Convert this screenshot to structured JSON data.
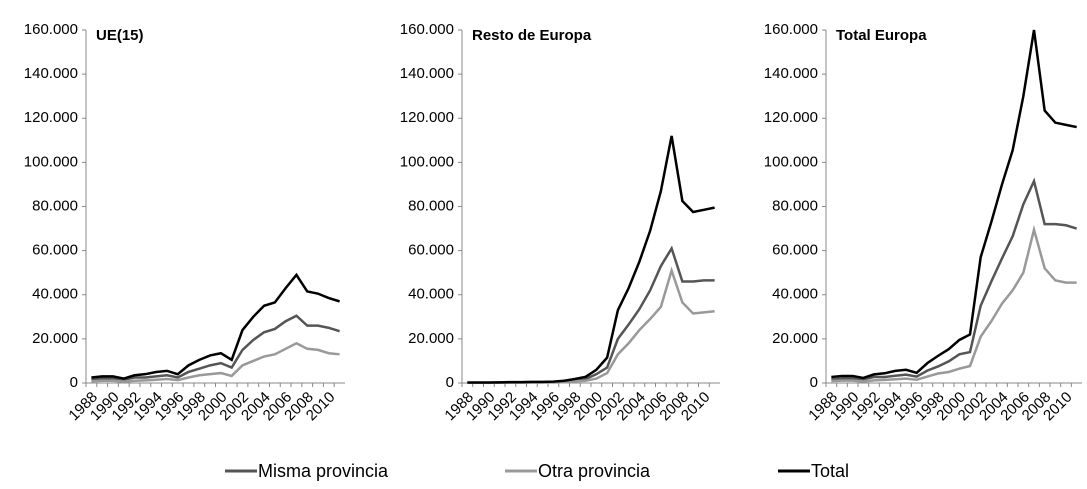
{
  "chart_data": [
    {
      "type": "line",
      "title": "UE(15)",
      "categories": [
        "1988",
        null,
        "1990",
        null,
        "1992",
        null,
        "1994",
        null,
        "1996",
        null,
        "1998",
        null,
        "2000",
        null,
        "2002",
        null,
        "2004",
        null,
        "2006",
        null,
        "2008",
        null,
        "2010",
        null
      ],
      "series": [
        {
          "name": "Misma provincia",
          "color": "#555555",
          "values": [
            1500,
            2000,
            2000,
            1500,
            2500,
            2500,
            3000,
            3500,
            2500,
            5000,
            6500,
            8000,
            9000,
            7000,
            15000,
            19500,
            23000,
            24500,
            28000,
            30500,
            26000,
            26000,
            25000,
            23500
          ]
        },
        {
          "name": "Otra provincia",
          "color": "#999999",
          "values": [
            800,
            1000,
            1000,
            600,
            1000,
            1200,
            1500,
            1800,
            1300,
            2500,
            3500,
            4000,
            4500,
            3200,
            8000,
            10000,
            12000,
            13000,
            15500,
            18000,
            15500,
            15000,
            13500,
            13000
          ]
        },
        {
          "name": "Total",
          "color": "#000000",
          "values": [
            2500,
            3000,
            3000,
            2000,
            3500,
            4000,
            5000,
            5500,
            4000,
            8000,
            10500,
            12500,
            13500,
            10500,
            24000,
            30000,
            35000,
            36500,
            43000,
            49000,
            41500,
            40500,
            38500,
            37000
          ]
        }
      ],
      "ylim": [
        0,
        160000
      ],
      "yticks": [
        0,
        {
          "value": 20000,
          "label": "20.000"
        },
        {
          "value": 40000,
          "label": "40.000"
        },
        {
          "value": 60000,
          "label": "60.000"
        },
        {
          "value": 80000,
          "label": "80.000"
        },
        {
          "value": 100000,
          "label": "100.000"
        },
        {
          "value": 120000,
          "label": "120.000"
        },
        {
          "value": 140000,
          "label": "140.000"
        },
        {
          "value": 160000,
          "label": "160.000"
        }
      ]
    },
    {
      "type": "line",
      "title": "Resto de Europa",
      "categories": [
        "1988",
        null,
        "1990",
        null,
        "1992",
        null,
        "1994",
        null,
        "1996",
        null,
        "1998",
        null,
        "2000",
        null,
        "2002",
        null,
        "2004",
        null,
        "2006",
        null,
        "2008",
        null,
        "2010",
        null
      ],
      "series": [
        {
          "name": "Misma provincia",
          "color": "#555555",
          "values": [
            100,
            100,
            100,
            200,
            200,
            200,
            300,
            300,
            400,
            600,
            1000,
            1800,
            4000,
            7000,
            20000,
            26500,
            33500,
            42000,
            53000,
            61000,
            46000,
            46000,
            46500,
            46500
          ]
        },
        {
          "name": "Otra provincia",
          "color": "#999999",
          "values": [
            100,
            100,
            100,
            100,
            200,
            200,
            200,
            200,
            200,
            400,
            800,
            1000,
            2000,
            4500,
            13000,
            18000,
            24000,
            29000,
            34500,
            51000,
            36500,
            31500,
            32000,
            32500
          ]
        },
        {
          "name": "Total",
          "color": "#000000",
          "values": [
            200,
            200,
            200,
            300,
            400,
            400,
            500,
            500,
            600,
            1000,
            1800,
            2800,
            6000,
            11500,
            33000,
            43000,
            55000,
            69000,
            87000,
            112000,
            82500,
            77500,
            78500,
            79500
          ]
        }
      ],
      "ylim": [
        0,
        160000
      ],
      "yticks": [
        0,
        {
          "value": 20000,
          "label": "20.000"
        },
        {
          "value": 40000,
          "label": "40.000"
        },
        {
          "value": 60000,
          "label": "60.000"
        },
        {
          "value": 80000,
          "label": "80.000"
        },
        {
          "value": 100000,
          "label": "100.000"
        },
        {
          "value": 120000,
          "label": "120.000"
        },
        {
          "value": 140000,
          "label": "140.000"
        },
        {
          "value": 160000,
          "label": "160.000"
        }
      ]
    },
    {
      "type": "line",
      "title": "Total Europa",
      "categories": [
        "1988",
        null,
        "1990",
        null,
        "1992",
        null,
        "1994",
        null,
        "1996",
        null,
        "1998",
        null,
        "2000",
        null,
        "2002",
        null,
        "2004",
        null,
        "2006",
        null,
        "2008",
        null,
        "2010",
        null
      ],
      "series": [
        {
          "name": "Misma provincia",
          "color": "#555555",
          "values": [
            1600,
            2100,
            2100,
            1700,
            2700,
            2700,
            3300,
            3800,
            2900,
            5600,
            7500,
            9800,
            13000,
            14000,
            35000,
            46000,
            56500,
            66500,
            81000,
            91500,
            72000,
            72000,
            71500,
            70000
          ]
        },
        {
          "name": "Otra provincia",
          "color": "#999999",
          "values": [
            900,
            1100,
            1100,
            700,
            1200,
            1400,
            1700,
            2000,
            1500,
            2900,
            4300,
            5000,
            6500,
            7700,
            21000,
            28000,
            36000,
            42000,
            50000,
            69500,
            52000,
            46500,
            45500,
            45500
          ]
        },
        {
          "name": "Total",
          "color": "#000000",
          "values": [
            2700,
            3200,
            3200,
            2300,
            3900,
            4400,
            5500,
            6000,
            4600,
            9000,
            12300,
            15300,
            19500,
            22000,
            57000,
            73000,
            90000,
            105500,
            130000,
            160000,
            123500,
            118000,
            117000,
            116000
          ]
        }
      ],
      "ylim": [
        0,
        160000
      ],
      "yticks": [
        0,
        {
          "value": 20000,
          "label": "20.000"
        },
        {
          "value": 40000,
          "label": "40.000"
        },
        {
          "value": 60000,
          "label": "60.000"
        },
        {
          "value": 80000,
          "label": "80.000"
        },
        {
          "value": 100000,
          "label": "100.000"
        },
        {
          "value": 120000,
          "label": "120.000"
        },
        {
          "value": 140000,
          "label": "140.000"
        },
        {
          "value": 160000,
          "label": "160.000"
        }
      ]
    }
  ]
}
